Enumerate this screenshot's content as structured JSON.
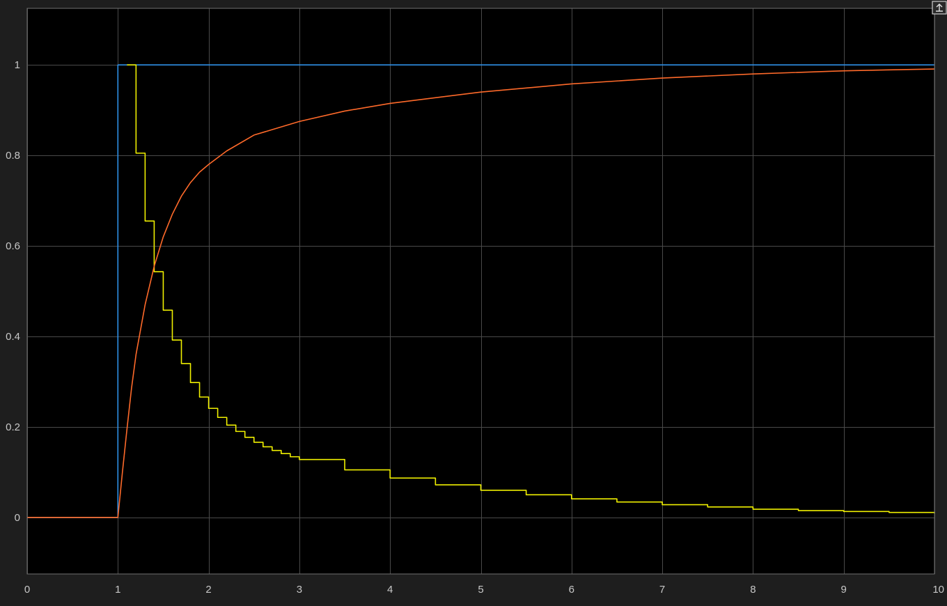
{
  "chart_data": {
    "type": "line",
    "title": "",
    "xlabel": "",
    "ylabel": "",
    "xlim": [
      0,
      10
    ],
    "ylim": [
      -0.125,
      1.125
    ],
    "xticks": [
      "0",
      "1",
      "2",
      "3",
      "4",
      "5",
      "6",
      "7",
      "8",
      "9",
      "10"
    ],
    "yticks": [
      "0",
      "0.2",
      "0.4",
      "0.6",
      "0.8",
      "1"
    ],
    "grid": true,
    "legend": "none",
    "background_color": "#000000",
    "axes_color": "#707070",
    "grid_color": "#4a4a4a",
    "tick_label_color": "#c8c8c8",
    "series": [
      {
        "color": "#2e8fe6",
        "style": "step",
        "x": [
          0,
          1,
          10
        ],
        "y": [
          0,
          1,
          1
        ]
      },
      {
        "color": "#f0f000",
        "style": "step",
        "x": [
          1.1,
          1.2,
          1.3,
          1.4,
          1.5,
          1.6,
          1.7,
          1.8,
          1.9,
          2.0,
          2.1,
          2.2,
          2.3,
          2.4,
          2.5,
          2.6,
          2.7,
          2.8,
          2.9,
          3.0,
          3.5,
          4.0,
          4.5,
          5.0,
          5.5,
          6.0,
          6.5,
          7.0,
          7.5,
          8.0,
          8.5,
          9.0,
          9.5,
          10.0
        ],
        "y": [
          1.0,
          0.805,
          0.655,
          0.543,
          0.458,
          0.392,
          0.34,
          0.298,
          0.266,
          0.241,
          0.221,
          0.204,
          0.19,
          0.177,
          0.166,
          0.156,
          0.148,
          0.141,
          0.134,
          0.128,
          0.105,
          0.087,
          0.072,
          0.06,
          0.05,
          0.041,
          0.034,
          0.028,
          0.023,
          0.018,
          0.015,
          0.013,
          0.011,
          0.009
        ]
      },
      {
        "color": "#ff6a2a",
        "style": "line",
        "x": [
          0,
          1.0,
          1.05,
          1.1,
          1.15,
          1.2,
          1.3,
          1.4,
          1.5,
          1.6,
          1.7,
          1.8,
          1.9,
          2.0,
          2.2,
          2.5,
          3.0,
          3.5,
          4.0,
          5.0,
          6.0,
          7.0,
          8.0,
          9.0,
          10.0
        ],
        "y": [
          0,
          0,
          0.1,
          0.195,
          0.285,
          0.36,
          0.47,
          0.555,
          0.62,
          0.67,
          0.71,
          0.74,
          0.763,
          0.78,
          0.81,
          0.845,
          0.875,
          0.898,
          0.915,
          0.94,
          0.958,
          0.971,
          0.98,
          0.987,
          0.991
        ]
      }
    ]
  }
}
